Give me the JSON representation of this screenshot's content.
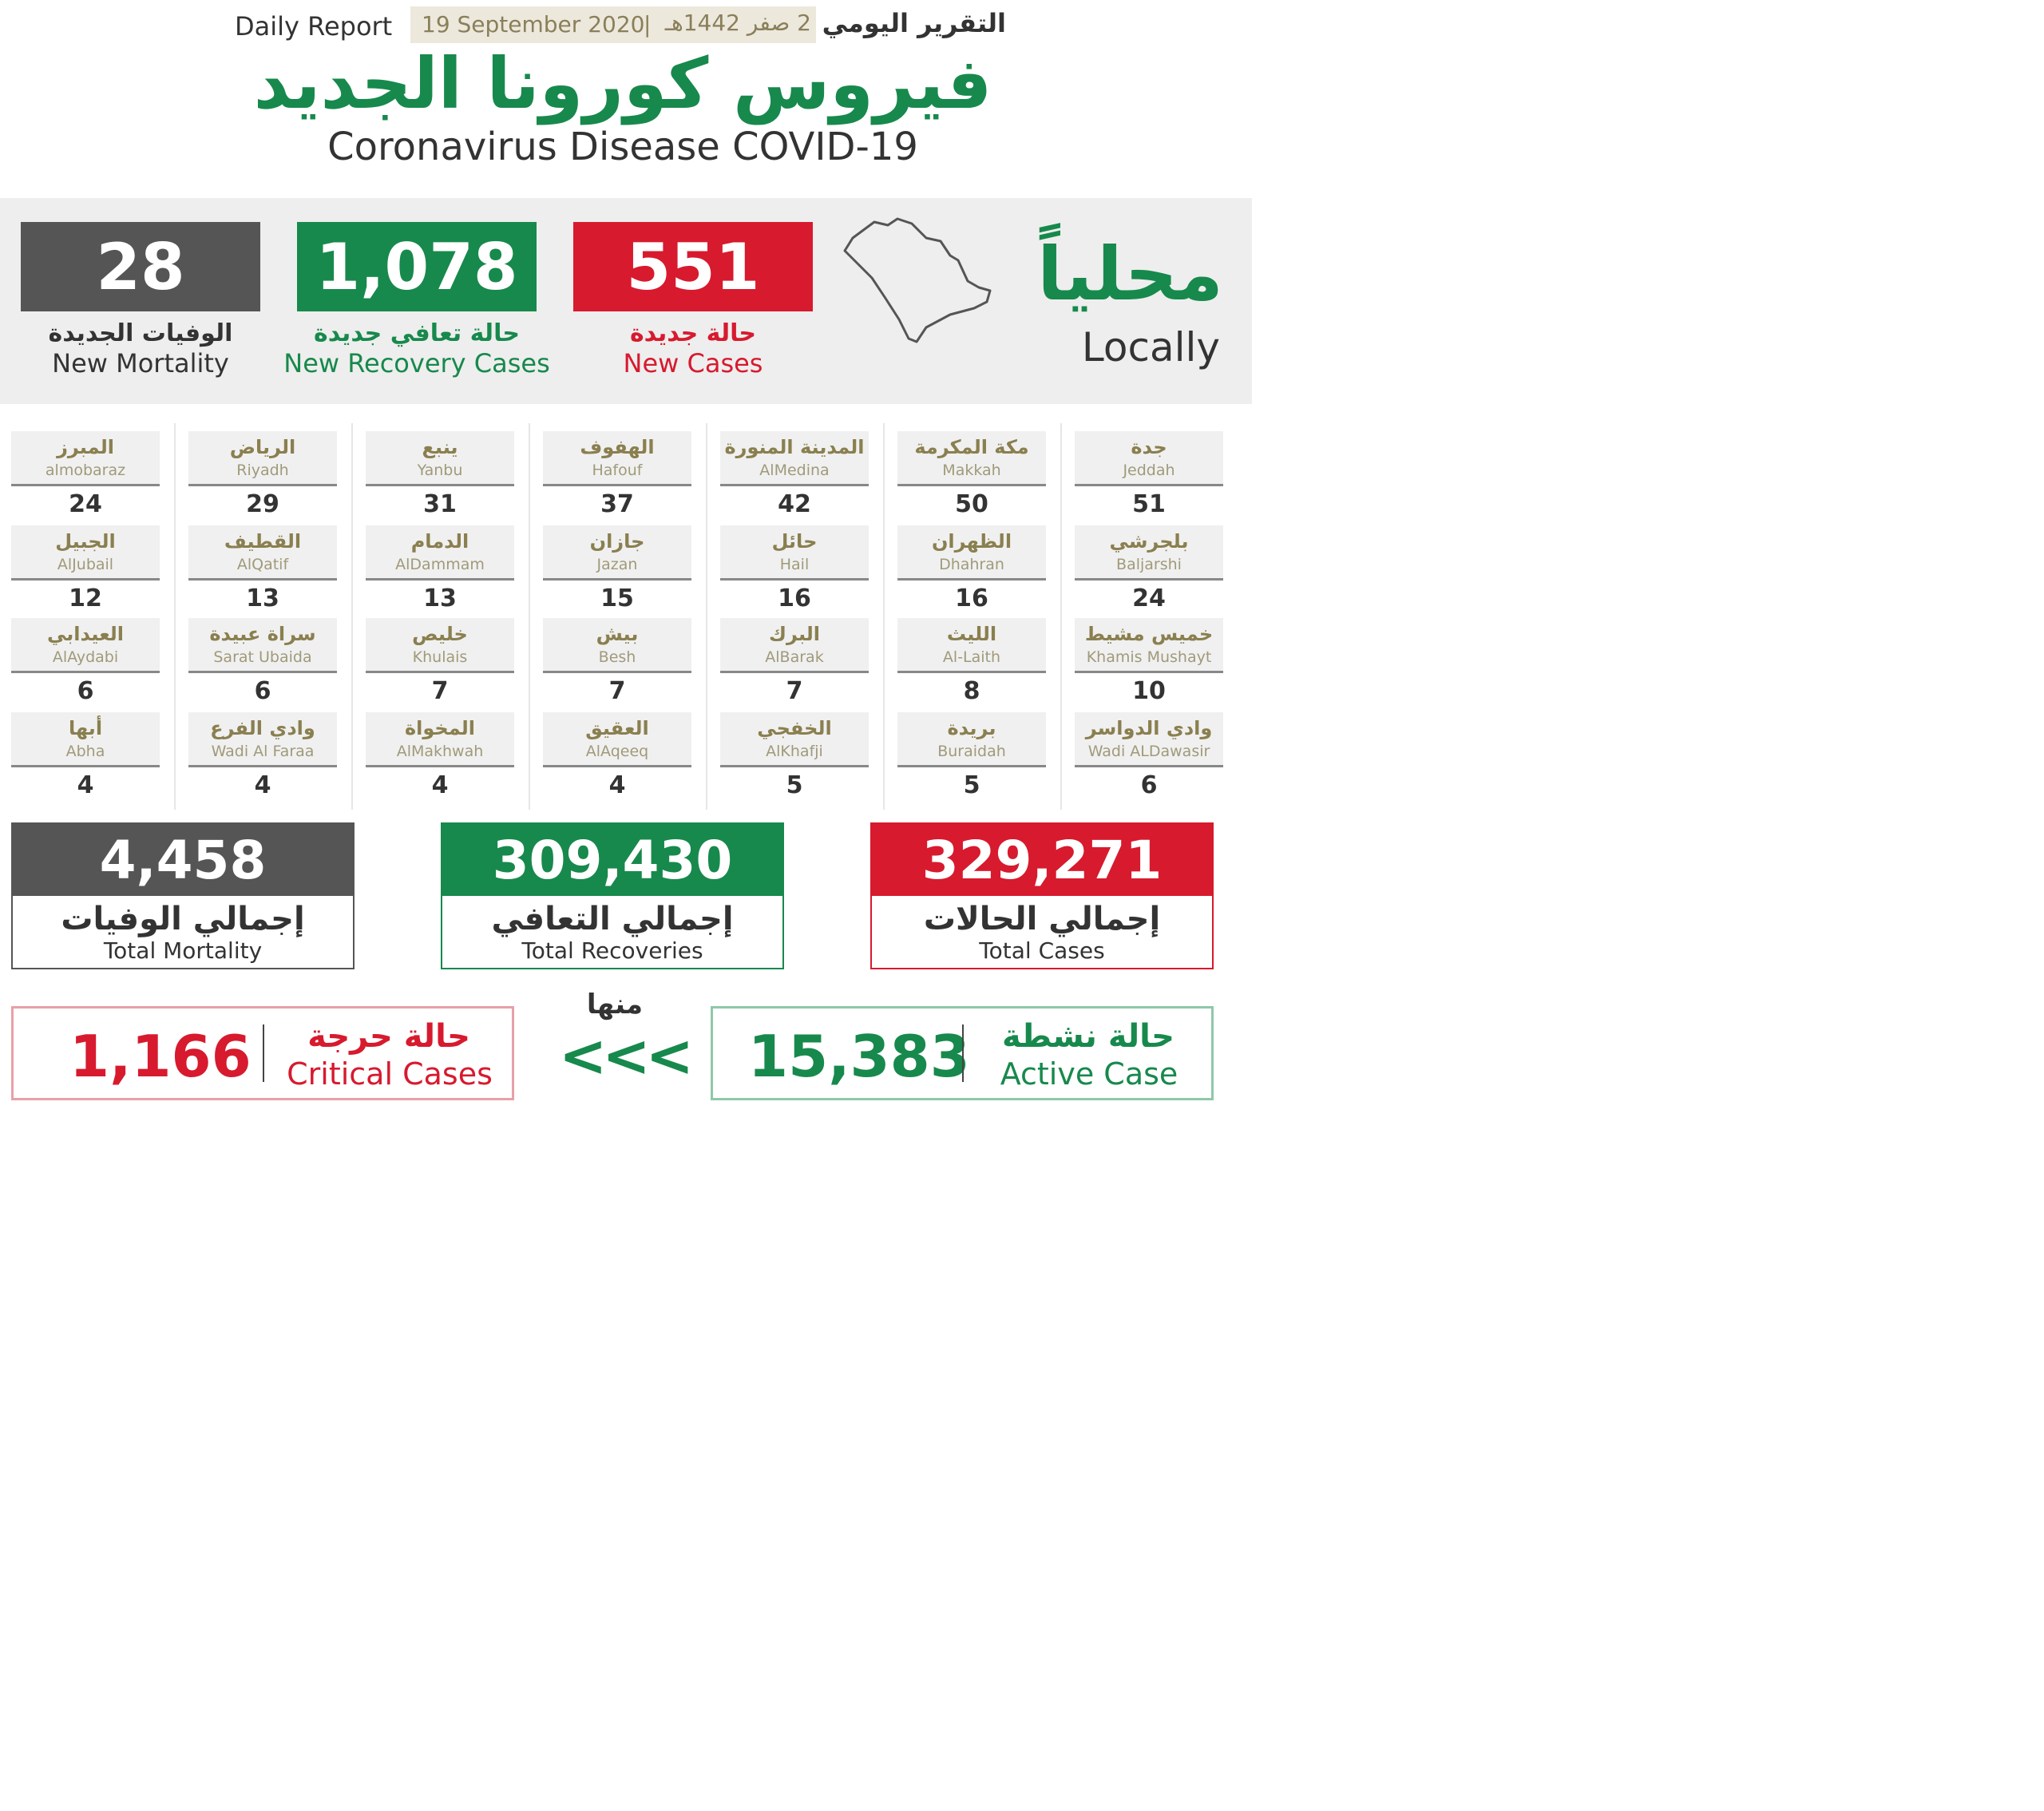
{
  "header": {
    "daily_report": "Daily Report",
    "date_en": "19 September 2020",
    "date_sep": "|",
    "date_hijri": "2 صفر 1442هـ",
    "daily_report_ar": "التقرير اليومي",
    "title_ar": "فيروس كورونا الجديد",
    "title_en": "Coronavirus Disease COVID-19"
  },
  "locally": {
    "label_ar": "محلياً",
    "label_en": "Locally",
    "map_icon": "saudi-arabia-map-icon",
    "new_cases": {
      "value": "551",
      "label_ar": "حالة جديدة",
      "label_en": "New Cases",
      "color": "#d71a2e"
    },
    "new_recovery": {
      "value": "1,078",
      "label_ar": "حالة تعافي جديدة",
      "label_en": "New Recovery Cases",
      "color": "#17894c"
    },
    "new_mortality": {
      "value": "28",
      "label_ar": "الوفيات الجديدة",
      "label_en": "New Mortality",
      "color": "#555555"
    }
  },
  "cities": [
    {
      "ar": "جدة",
      "en": "Jeddah",
      "value": "51"
    },
    {
      "ar": "مكة المكرمة",
      "en": "Makkah",
      "value": "50"
    },
    {
      "ar": "المدينة المنورة",
      "en": "AlMedina",
      "value": "42"
    },
    {
      "ar": "الهفوف",
      "en": "Hafouf",
      "value": "37"
    },
    {
      "ar": "ينبع",
      "en": "Yanbu",
      "value": "31"
    },
    {
      "ar": "الرياض",
      "en": "Riyadh",
      "value": "29"
    },
    {
      "ar": "المبرز",
      "en": "almobaraz",
      "value": "24"
    },
    {
      "ar": "بلجرشي",
      "en": "Baljarshi",
      "value": "24"
    },
    {
      "ar": "الظهران",
      "en": "Dhahran",
      "value": "16"
    },
    {
      "ar": "حائل",
      "en": "Hail",
      "value": "16"
    },
    {
      "ar": "جازان",
      "en": "Jazan",
      "value": "15"
    },
    {
      "ar": "الدمام",
      "en": "AlDammam",
      "value": "13"
    },
    {
      "ar": "القطيف",
      "en": "AlQatif",
      "value": "13"
    },
    {
      "ar": "الجبيل",
      "en": "AlJubail",
      "value": "12"
    },
    {
      "ar": "خميس مشيط",
      "en": "Khamis Mushayt",
      "value": "10"
    },
    {
      "ar": "الليث",
      "en": "Al-Laith",
      "value": "8"
    },
    {
      "ar": "البرك",
      "en": "AlBarak",
      "value": "7"
    },
    {
      "ar": "بيش",
      "en": "Besh",
      "value": "7"
    },
    {
      "ar": "خليص",
      "en": "Khulais",
      "value": "7"
    },
    {
      "ar": "سراة عبيدة",
      "en": "Sarat Ubaida",
      "value": "6"
    },
    {
      "ar": "العيدابي",
      "en": "AlAydabi",
      "value": "6"
    },
    {
      "ar": "وادي الدواسر",
      "en": "Wadi ALDawasir",
      "value": "6"
    },
    {
      "ar": "بريدة",
      "en": "Buraidah",
      "value": "5"
    },
    {
      "ar": "الخفجي",
      "en": "AlKhafji",
      "value": "5"
    },
    {
      "ar": "العقيق",
      "en": "AlAqeeq",
      "value": "4"
    },
    {
      "ar": "المخواة",
      "en": "AlMakhwah",
      "value": "4"
    },
    {
      "ar": "وادي الفرع",
      "en": "Wadi Al Faraa",
      "value": "4"
    },
    {
      "ar": "أبها",
      "en": "Abha",
      "value": "4"
    }
  ],
  "totals": {
    "cases": {
      "value": "329,271",
      "label_ar": "إجمالي الحالات",
      "label_en": "Total Cases",
      "color": "#d71a2e"
    },
    "recoveries": {
      "value": "309,430",
      "label_ar": "إجمالي التعافي",
      "label_en": "Total Recoveries",
      "color": "#17894c"
    },
    "mortality": {
      "value": "4,458",
      "label_ar": "إجمالي الوفيات",
      "label_en": "Total Mortality",
      "color": "#555555"
    }
  },
  "bottom": {
    "minha": "منها",
    "arrows": "<<<",
    "active": {
      "value": "15,383",
      "label_ar": "حالة نشطة",
      "label_en": "Active Case",
      "color": "#17894c"
    },
    "critical": {
      "value": "1,166",
      "label_ar": "حالة حرجة",
      "label_en": "Critical Cases",
      "color": "#d71a2e"
    }
  }
}
